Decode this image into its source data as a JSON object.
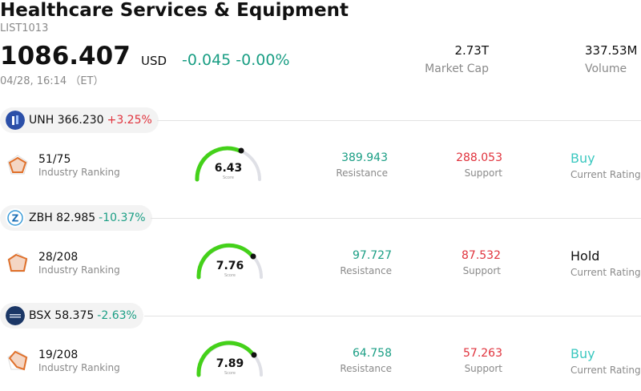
{
  "header": {
    "title": "Healthcare Services & Equipment",
    "code": "LIST1013",
    "price": "1086.407",
    "currency": "USD",
    "change": "-0.045 -0.00%",
    "time": "04/28, 16:14 （ET）",
    "market_cap_value": "2.73T",
    "market_cap_label": "Market Cap",
    "volume_value": "337.53M",
    "volume_label": "Volume"
  },
  "colors": {
    "up": "#e0323c",
    "down": "#1a9e84",
    "buy": "#3cc8c0",
    "hold": "#111111",
    "gauge": "#44d11a"
  },
  "stocks": [
    {
      "ticker_price": "UNH 366.230",
      "change": "+3.25%",
      "ranking": "51/75",
      "ranking_label": "Industry Ranking",
      "score": "6.43",
      "score_label": "Score",
      "resistance": "389.943",
      "resistance_label": "Resistance",
      "support": "288.053",
      "support_label": "Support",
      "rating": "Buy",
      "rating_label": "Current Rating"
    },
    {
      "ticker_price": "ZBH 82.985",
      "change": "-10.37%",
      "ranking": "28/208",
      "ranking_label": "Industry Ranking",
      "score": "7.76",
      "score_label": "Score",
      "resistance": "97.727",
      "resistance_label": "Resistance",
      "support": "87.532",
      "support_label": "Support",
      "rating": "Hold",
      "rating_label": "Current Rating"
    },
    {
      "ticker_price": "BSX 58.375",
      "change": "-2.63%",
      "ranking": "19/208",
      "ranking_label": "Industry Ranking",
      "score": "7.89",
      "score_label": "Score",
      "resistance": "64.758",
      "resistance_label": "Resistance",
      "support": "57.263",
      "support_label": "Support",
      "rating": "Buy",
      "rating_label": "Current Rating"
    }
  ]
}
